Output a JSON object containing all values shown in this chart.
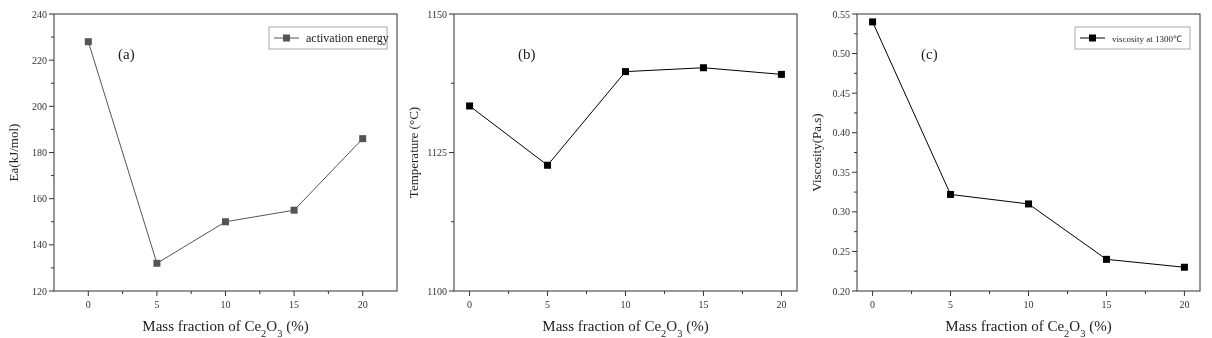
{
  "chart_data": [
    {
      "type": "line",
      "xlabel": "Mass fraction of Ce$_{2}$O$_{3}$ (%)",
      "ylabel": "Ea(kJ/mol)",
      "annotations": [
        "(a)"
      ],
      "x": [
        0,
        5,
        10,
        15,
        20
      ],
      "series": [
        {
          "name": "activation energy",
          "color": "#555555",
          "values": [
            228,
            132,
            150,
            155,
            186
          ]
        }
      ],
      "xlim": [
        -2.5,
        22.5
      ],
      "xticks": [
        0,
        {
          "value": 2.5,
          "label": null
        },
        5,
        {
          "value": 7.5,
          "label": null
        },
        10,
        {
          "value": 12.5,
          "label": null
        },
        15,
        {
          "value": 17.5,
          "label": null
        },
        20
      ],
      "ylim": [
        120,
        240
      ],
      "yticks": [
        120,
        {
          "value": 130,
          "label": null
        },
        140,
        {
          "value": 150,
          "label": null
        },
        160,
        {
          "value": 170,
          "label": null
        },
        180,
        {
          "value": 190,
          "label": null
        },
        200,
        {
          "value": 210,
          "label": null
        },
        220,
        {
          "value": 230,
          "label": null
        },
        240
      ],
      "marker": "square",
      "legend": "top right",
      "grid": false
    },
    {
      "type": "line",
      "xlabel": "Mass fraction of Ce$_{2}$O$_{3}$ (%)",
      "ylabel": "Temperature (°C)",
      "annotations": [
        "(b)"
      ],
      "x": [
        0,
        5,
        10,
        15,
        20
      ],
      "series": [
        {
          "color": "#000000",
          "values": [
            1133.4,
            1122.7,
            1139.6,
            1140.3,
            1139.1
          ]
        }
      ],
      "xlim": [
        -1,
        21
      ],
      "xticks": [
        0,
        {
          "value": 2.5,
          "label": null
        },
        5,
        {
          "value": 7.5,
          "label": null
        },
        10,
        {
          "value": 12.5,
          "label": null
        },
        15,
        {
          "value": 17.5,
          "label": null
        },
        20
      ],
      "ylim": [
        1100,
        1150
      ],
      "yticks": [
        1100,
        {
          "value": 1112.5,
          "label": null
        },
        1125,
        {
          "value": 1137.5,
          "label": null
        },
        1150
      ],
      "marker": "square",
      "grid": false
    },
    {
      "type": "line",
      "xlabel": "Mass fraction of Ce$_{2}$O$_{3}$ (%)",
      "ylabel": "Viscosity(Pa.s)",
      "annotations": [
        "(c)"
      ],
      "x": [
        0,
        5,
        10,
        15,
        20
      ],
      "series": [
        {
          "name": "viscosity at 1300℃",
          "color": "#000000",
          "values": [
            0.54,
            0.322,
            0.31,
            0.24,
            0.23
          ]
        }
      ],
      "xlim": [
        -1,
        21
      ],
      "xticks": [
        0,
        {
          "value": 2.5,
          "label": null
        },
        5,
        {
          "value": 7.5,
          "label": null
        },
        10,
        {
          "value": 12.5,
          "label": null
        },
        15,
        {
          "value": 17.5,
          "label": null
        },
        20
      ],
      "ylim": [
        0.2,
        0.55
      ],
      "yticks": [
        {
          "value": 0.2,
          "label": "0.20"
        },
        {
          "value": 0.225,
          "label": null
        },
        {
          "value": 0.25,
          "label": "0.25"
        },
        {
          "value": 0.275,
          "label": null
        },
        {
          "value": 0.3,
          "label": "0.30"
        },
        {
          "value": 0.325,
          "label": null
        },
        {
          "value": 0.35,
          "label": "0.35"
        },
        {
          "value": 0.375,
          "label": null
        },
        {
          "value": 0.4,
          "label": "0.40"
        },
        {
          "value": 0.425,
          "label": null
        },
        {
          "value": 0.45,
          "label": "0.45"
        },
        {
          "value": 0.475,
          "label": null
        },
        {
          "value": 0.5,
          "label": "0.50"
        },
        {
          "value": 0.525,
          "label": null
        },
        {
          "value": 0.55,
          "label": "0.55"
        }
      ],
      "marker": "square",
      "legend": "top right",
      "grid": false
    }
  ]
}
